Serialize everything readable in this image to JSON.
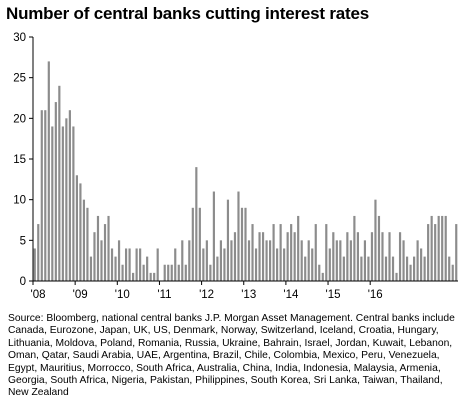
{
  "chart_data": {
    "type": "bar",
    "title": "Number of central banks cutting interest rates",
    "xlabel": "",
    "ylabel": "",
    "ylim": [
      0,
      30
    ],
    "yticks": [
      0,
      5,
      10,
      15,
      20,
      25,
      30
    ],
    "start": "2008-01",
    "xtick_labels": [
      "'08",
      "'09",
      "'10",
      "'11",
      "'12",
      "'13",
      "'14",
      "'15",
      "'16"
    ],
    "grid": false,
    "legend": "none",
    "bar_color": "#8c8c8c",
    "values": [
      4,
      7,
      21,
      21,
      27,
      19,
      22,
      24,
      19,
      20,
      21,
      19,
      13,
      12,
      10,
      9,
      3,
      6,
      8,
      5,
      7,
      8,
      4,
      3,
      5,
      2,
      4,
      4,
      1,
      4,
      4,
      2,
      3,
      1,
      1,
      4,
      0,
      2,
      2,
      2,
      4,
      2,
      5,
      2,
      5,
      9,
      14,
      9,
      4,
      5,
      2,
      11,
      3,
      5,
      4,
      10,
      5,
      6,
      11,
      9,
      9,
      5,
      7,
      4,
      6,
      6,
      5,
      5,
      7,
      4,
      7,
      4,
      6,
      7,
      6,
      8,
      5,
      3,
      5,
      4,
      7,
      2,
      1,
      7,
      4,
      6,
      5,
      5,
      3,
      6,
      5,
      8,
      6,
      3,
      5,
      3,
      6,
      10,
      8,
      6,
      3,
      6,
      3,
      1,
      6,
      5,
      3,
      2,
      3,
      5,
      4,
      3,
      7,
      8,
      7,
      8,
      8,
      8,
      3,
      2,
      7
    ]
  },
  "source_text": "Source: Bloomberg, national central banks J.P. Morgan Asset Management. Central banks include Canada, Eurozone, Japan, UK, US, Denmark, Norway, Switzerland, Iceland, Croatia, Hungary, Lithuania, Moldova, Poland, Romania, Russia, Ukraine, Bahrain, Israel, Jordan, Kuwait, Lebanon, Oman, Qatar, Saudi Arabia, UAE, Argentina, Brazil, Chile, Colombia, Mexico, Peru, Venezuela, Egypt, Mauritius, Morrocco, South Africa, Australia, China, India, Indonesia, Malaysia, Armenia, Georgia, South Africa, Nigeria, Pakistan, Philippines, South Korea, Sri Lanka, Taiwan, Thailand, New Zealand"
}
